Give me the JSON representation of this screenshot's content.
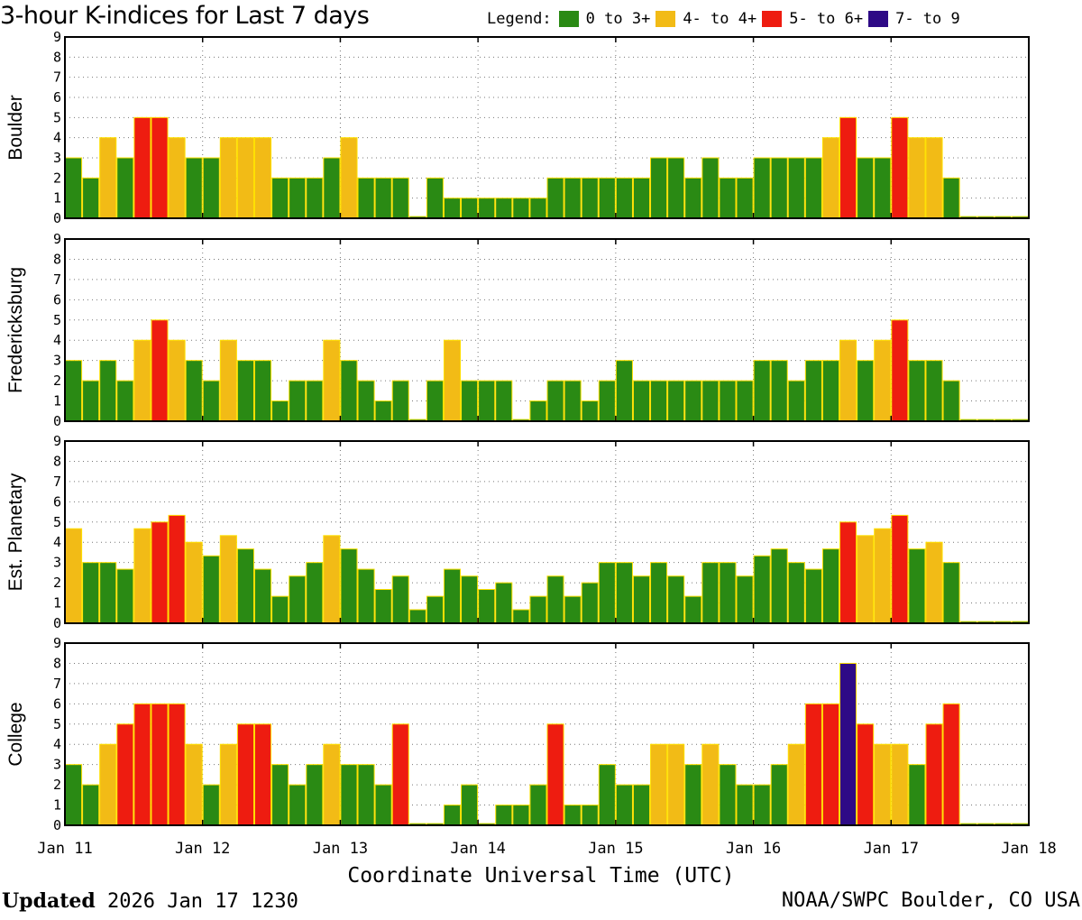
{
  "header": {
    "title": "3-hour K-indices for Last 7 days",
    "legend_label": "Legend:",
    "legend": [
      {
        "label": "0 to 3+",
        "color": "#2a8a14"
      },
      {
        "label": "4- to 4+",
        "color": "#f2bb16"
      },
      {
        "label": "5- to 6+",
        "color": "#ee1c10"
      },
      {
        "label": "7- to 9",
        "color": "#2e0a86"
      }
    ]
  },
  "chart_data": {
    "type": "bar",
    "xlabel": "Coordinate Universal Time (UTC)",
    "x_ticks": [
      "Jan 11",
      "Jan 12",
      "Jan 13",
      "Jan 14",
      "Jan 15",
      "Jan 16",
      "Jan 17",
      "Jan 18"
    ],
    "ylim": [
      0,
      9
    ],
    "y_ticks": [
      "0",
      "1",
      "2",
      "3",
      "4",
      "5",
      "6",
      "7",
      "8",
      "9"
    ],
    "grid": true,
    "bins_per_day": 8,
    "colors": {
      "low": "#2a8a14",
      "mid": "#f2bb16",
      "high": "#ee1c10",
      "severe": "#2e0a86",
      "edge": "#ffe000"
    },
    "series": [
      {
        "name": "Boulder",
        "values": [
          3,
          2,
          4,
          3,
          5,
          5,
          4,
          3,
          3,
          4,
          4,
          4,
          2,
          2,
          2,
          3,
          4,
          2,
          2,
          2,
          0,
          2,
          1,
          1,
          1,
          1,
          1,
          1,
          2,
          2,
          2,
          2,
          2,
          2,
          3,
          3,
          2,
          3,
          2,
          2,
          3,
          3,
          3,
          3,
          4,
          5,
          3,
          3,
          5,
          4,
          4,
          2,
          0,
          0,
          0,
          0
        ]
      },
      {
        "name": "Fredericksburg",
        "values": [
          3,
          2,
          3,
          2,
          4,
          5,
          4,
          3,
          2,
          4,
          3,
          3,
          1,
          2,
          2,
          4,
          3,
          2,
          1,
          2,
          0,
          2,
          4,
          2,
          2,
          2,
          0,
          1,
          2,
          2,
          1,
          2,
          3,
          2,
          2,
          2,
          2,
          2,
          2,
          2,
          3,
          3,
          2,
          3,
          3,
          4,
          3,
          4,
          5,
          3,
          3,
          2,
          0,
          0,
          0,
          0
        ]
      },
      {
        "name": "Est. Planetary",
        "values": [
          4.67,
          3,
          3,
          2.67,
          4.67,
          5,
          5.33,
          4,
          3.33,
          4.33,
          3.67,
          2.67,
          1.33,
          2.33,
          3,
          4.33,
          3.67,
          2.67,
          1.67,
          2.33,
          0.67,
          1.33,
          2.67,
          2.33,
          1.67,
          2,
          0.67,
          1.33,
          2.33,
          1.33,
          2,
          3,
          3,
          2.33,
          3,
          2.33,
          1.33,
          3,
          3,
          2.33,
          3.33,
          3.67,
          3,
          2.67,
          3.67,
          5,
          4.33,
          4.67,
          5.33,
          3.67,
          4,
          3,
          0,
          0,
          0,
          0
        ]
      },
      {
        "name": "College",
        "values": [
          3,
          2,
          4,
          5,
          6,
          6,
          6,
          4,
          2,
          4,
          5,
          5,
          3,
          2,
          3,
          4,
          3,
          3,
          2,
          5,
          0,
          0,
          1,
          2,
          0,
          1,
          1,
          2,
          5,
          1,
          1,
          3,
          2,
          2,
          4,
          4,
          3,
          4,
          3,
          2,
          2,
          3,
          4,
          6,
          6,
          8,
          5,
          4,
          4,
          3,
          5,
          6,
          0,
          0,
          0,
          0
        ]
      }
    ]
  },
  "footer": {
    "updated_label": "Updated",
    "updated_value": "2026 Jan 17 1230",
    "credit": "NOAA/SWPC Boulder, CO USA"
  }
}
